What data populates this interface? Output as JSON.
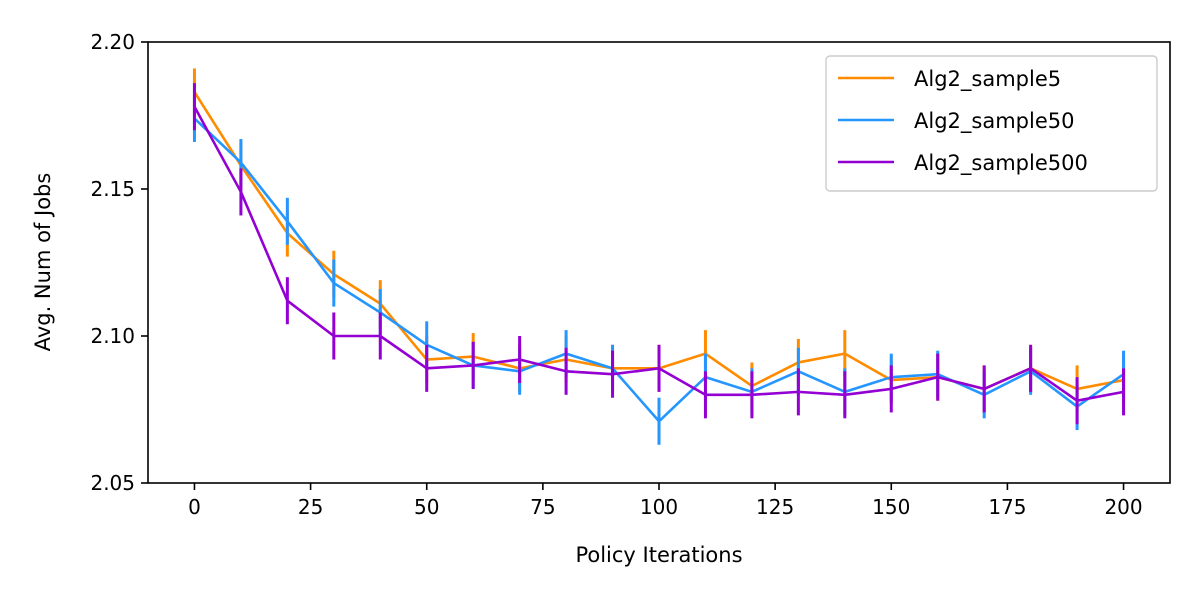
{
  "chart_data": {
    "type": "line",
    "title": "",
    "xlabel": "Policy Iterations",
    "ylabel": "Avg. Num of Jobs",
    "xlim": [
      -10,
      210
    ],
    "ylim": [
      2.05,
      2.2
    ],
    "x_ticks": [
      0,
      25,
      50,
      75,
      100,
      125,
      150,
      175,
      200
    ],
    "x_tick_labels": [
      "0",
      "25",
      "50",
      "75",
      "100",
      "125",
      "150",
      "175",
      "200"
    ],
    "y_ticks": [
      2.05,
      2.1,
      2.15,
      2.2
    ],
    "y_tick_labels": [
      "2.05",
      "2.10",
      "2.15",
      "2.20"
    ],
    "grid": false,
    "legend_position": "top-right",
    "x": [
      0,
      10,
      20,
      30,
      40,
      50,
      60,
      70,
      80,
      90,
      100,
      110,
      120,
      130,
      140,
      150,
      160,
      170,
      180,
      190,
      200
    ],
    "series": [
      {
        "name": "Alg2_sample5",
        "color": "#ff8c00",
        "values": [
          2.183,
          2.158,
          2.135,
          2.121,
          2.111,
          2.092,
          2.093,
          2.089,
          2.092,
          2.089,
          2.089,
          2.094,
          2.083,
          2.091,
          2.094,
          2.085,
          2.086,
          2.082,
          2.089,
          2.082,
          2.085
        ],
        "errors": [
          0.008,
          0.008,
          0.008,
          0.008,
          0.008,
          0.008,
          0.008,
          0.008,
          0.008,
          0.008,
          0.008,
          0.008,
          0.008,
          0.008,
          0.008,
          0.008,
          0.008,
          0.008,
          0.008,
          0.008,
          0.008
        ]
      },
      {
        "name": "Alg2_sample50",
        "color": "#2596ff",
        "values": [
          2.174,
          2.159,
          2.139,
          2.118,
          2.108,
          2.097,
          2.09,
          2.088,
          2.094,
          2.089,
          2.071,
          2.086,
          2.081,
          2.088,
          2.081,
          2.086,
          2.087,
          2.08,
          2.088,
          2.076,
          2.087
        ],
        "errors": [
          0.008,
          0.008,
          0.008,
          0.008,
          0.008,
          0.008,
          0.008,
          0.008,
          0.008,
          0.008,
          0.008,
          0.008,
          0.008,
          0.008,
          0.008,
          0.008,
          0.008,
          0.008,
          0.008,
          0.008,
          0.008
        ]
      },
      {
        "name": "Alg2_sample500",
        "color": "#9400d3",
        "values": [
          2.178,
          2.149,
          2.112,
          2.1,
          2.1,
          2.089,
          2.09,
          2.092,
          2.088,
          2.087,
          2.089,
          2.08,
          2.08,
          2.081,
          2.08,
          2.082,
          2.086,
          2.082,
          2.089,
          2.078,
          2.081
        ],
        "errors": [
          0.008,
          0.008,
          0.008,
          0.008,
          0.008,
          0.008,
          0.008,
          0.008,
          0.008,
          0.008,
          0.008,
          0.008,
          0.008,
          0.008,
          0.008,
          0.008,
          0.008,
          0.008,
          0.008,
          0.008,
          0.008
        ]
      }
    ]
  }
}
